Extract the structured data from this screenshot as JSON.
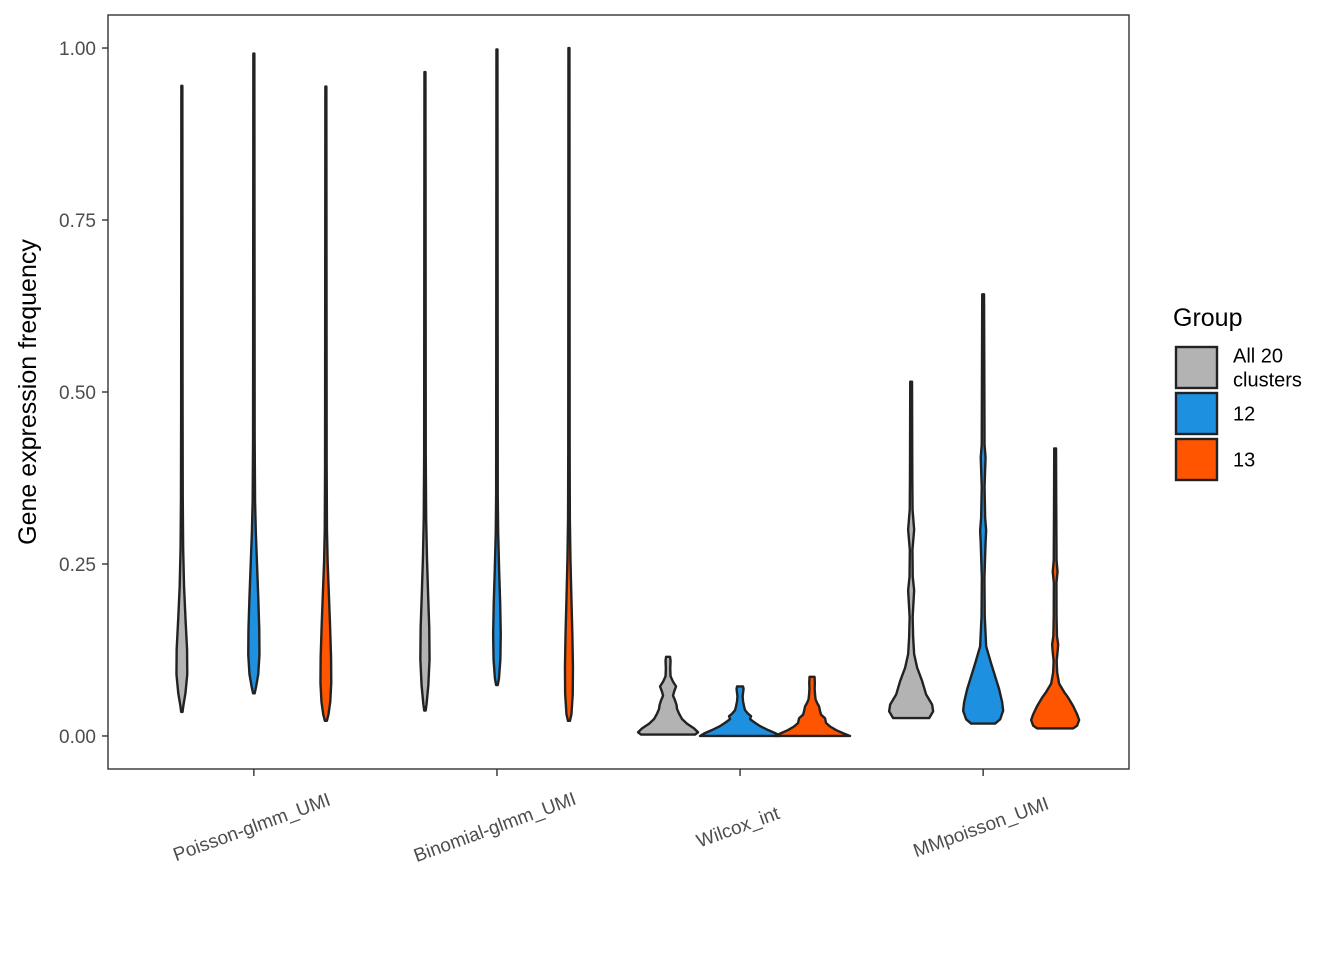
{
  "chart_data": {
    "type": "violin",
    "title": "",
    "xlabel": "",
    "ylabel": "Gene expression frequency",
    "ylim": [
      -0.048,
      1.048
    ],
    "y_ticks": [
      0.0,
      0.25,
      0.5,
      0.75,
      1.0
    ],
    "y_tick_labels": [
      "0.00",
      "0.25",
      "0.50",
      "0.75",
      "1.00"
    ],
    "categories": [
      "Poisson-glmm_UMI",
      "Binomial-glmm_UMI",
      "Wilcox_int",
      "MMpoisson_UMI"
    ],
    "grid": false,
    "legend": {
      "title": "Group",
      "position": "right",
      "entries": [
        {
          "label_lines": [
            "All 20",
            "clusters"
          ],
          "color": "#b3b3b3"
        },
        {
          "label_lines": [
            "12"
          ],
          "color": "#1e90e0"
        },
        {
          "label_lines": [
            "13"
          ],
          "color": "#ff5400"
        }
      ]
    },
    "series": [
      {
        "name": "All 20 clusters",
        "color": "#b3b3b3",
        "violins": [
          {
            "category": "Poisson-glmm_UMI",
            "min": 0.035,
            "max": 0.945
          },
          {
            "category": "Binomial-glmm_UMI",
            "min": 0.037,
            "max": 0.965
          },
          {
            "category": "Wilcox_int",
            "min": 0.002,
            "max": 0.115
          },
          {
            "category": "MMpoisson_UMI",
            "min": 0.026,
            "max": 0.515
          }
        ]
      },
      {
        "name": "12",
        "color": "#1e90e0",
        "violins": [
          {
            "category": "Poisson-glmm_UMI",
            "min": 0.062,
            "max": 0.992
          },
          {
            "category": "Binomial-glmm_UMI",
            "min": 0.074,
            "max": 0.998
          },
          {
            "category": "Wilcox_int",
            "min": 0.0,
            "max": 0.072
          },
          {
            "category": "MMpoisson_UMI",
            "min": 0.018,
            "max": 0.642
          }
        ]
      },
      {
        "name": "13",
        "color": "#ff5400",
        "violins": [
          {
            "category": "Poisson-glmm_UMI",
            "min": 0.022,
            "max": 0.944
          },
          {
            "category": "Binomial-glmm_UMI",
            "min": 0.022,
            "max": 1.0
          },
          {
            "category": "Wilcox_int",
            "min": 0.0,
            "max": 0.086
          },
          {
            "category": "MMpoisson_UMI",
            "min": 0.011,
            "max": 0.418
          }
        ]
      }
    ]
  }
}
